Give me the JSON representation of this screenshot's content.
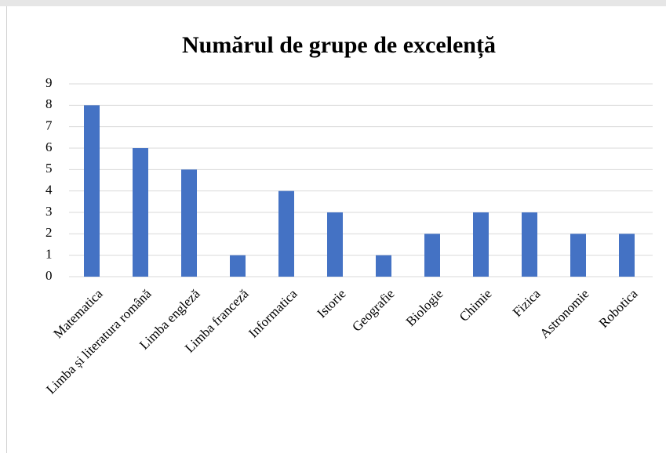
{
  "chart_data": {
    "type": "bar",
    "title": "Numărul de grupe de excelență",
    "categories": [
      "Matematica",
      "Limba și literatura  română",
      "Limba engleză",
      "Limba franceză",
      "Informatica",
      "Istorie",
      "Geografie",
      "Biologie",
      "Chimie",
      "Fizica",
      "Astronomie",
      "Robotica"
    ],
    "values": [
      8,
      6,
      5,
      1,
      4,
      3,
      1,
      2,
      3,
      3,
      2,
      2
    ],
    "color": "#4472c4",
    "ylim": [
      0,
      9
    ],
    "yticks": [
      0,
      1,
      2,
      3,
      4,
      5,
      6,
      7,
      8,
      9
    ],
    "grid": true
  }
}
